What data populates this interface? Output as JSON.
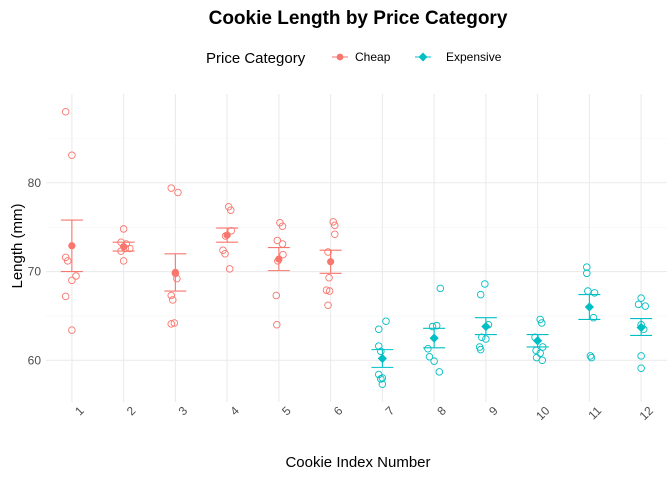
{
  "chart_data": {
    "type": "scatter",
    "title": "Cookie Length by Price Category",
    "xlabel": "Cookie Index Number",
    "ylabel": "Length (mm)",
    "ylim": [
      55.3,
      90.0
    ],
    "y_major_ticks": [
      60,
      70,
      80
    ],
    "y_minor_ticks": [
      65,
      75,
      85
    ],
    "x_tick_labels": [
      "1",
      "2",
      "3",
      "4",
      "5",
      "6",
      "7",
      "8",
      "9",
      "10",
      "11",
      "12"
    ],
    "x_tick_rotation_deg": -45,
    "grid": true,
    "legend": {
      "title": "Price Category",
      "position": "top",
      "entries": [
        "Cheap",
        "Expensive"
      ]
    },
    "colors": {
      "Cheap": "#F8766D",
      "Expensive": "#00BFC4"
    },
    "summary": "mean with standard-error bars",
    "groups": [
      {
        "x": 1,
        "category": "Cheap",
        "mean": 72.9,
        "se_low": 70.0,
        "se_high": 75.8,
        "points": [
          [
            -0.12,
            88.0
          ],
          [
            0.0,
            83.1
          ],
          [
            -0.12,
            71.6
          ],
          [
            -0.08,
            71.2
          ],
          [
            0.0,
            69.0
          ],
          [
            0.08,
            69.5
          ],
          [
            -0.12,
            67.2
          ],
          [
            0.0,
            63.4
          ]
        ]
      },
      {
        "x": 2,
        "category": "Cheap",
        "mean": 72.8,
        "se_low": 72.3,
        "se_high": 73.3,
        "points": [
          [
            0.0,
            74.8
          ],
          [
            -0.05,
            73.3
          ],
          [
            0.05,
            73.1
          ],
          [
            0.12,
            72.6
          ],
          [
            -0.05,
            72.3
          ],
          [
            0.03,
            72.6
          ],
          [
            0.0,
            71.2
          ]
        ]
      },
      {
        "x": 3,
        "category": "Cheap",
        "mean": 69.9,
        "se_low": 67.8,
        "se_high": 72.0,
        "points": [
          [
            -0.08,
            79.4
          ],
          [
            0.05,
            78.9
          ],
          [
            0.0,
            69.8
          ],
          [
            0.03,
            69.2
          ],
          [
            -0.08,
            67.3
          ],
          [
            -0.05,
            66.8
          ],
          [
            -0.08,
            64.1
          ],
          [
            -0.02,
            64.2
          ]
        ]
      },
      {
        "x": 4,
        "category": "Cheap",
        "mean": 74.1,
        "se_low": 73.3,
        "se_high": 74.9,
        "points": [
          [
            0.03,
            77.3
          ],
          [
            0.07,
            76.9
          ],
          [
            0.08,
            74.6
          ],
          [
            -0.03,
            74.0
          ],
          [
            -0.08,
            72.4
          ],
          [
            -0.04,
            72.0
          ],
          [
            0.05,
            70.3
          ]
        ]
      },
      {
        "x": 5,
        "category": "Cheap",
        "mean": 71.4,
        "se_low": 70.1,
        "se_high": 72.7,
        "points": [
          [
            0.02,
            75.5
          ],
          [
            0.07,
            75.1
          ],
          [
            -0.03,
            73.5
          ],
          [
            0.07,
            73.1
          ],
          [
            0.08,
            71.9
          ],
          [
            -0.02,
            71.2
          ],
          [
            -0.05,
            67.3
          ],
          [
            -0.04,
            64.0
          ]
        ]
      },
      {
        "x": 6,
        "category": "Cheap",
        "mean": 71.1,
        "se_low": 69.8,
        "se_high": 72.4,
        "points": [
          [
            0.05,
            75.6
          ],
          [
            0.08,
            75.2
          ],
          [
            0.08,
            74.2
          ],
          [
            -0.05,
            72.2
          ],
          [
            -0.03,
            69.3
          ],
          [
            -0.08,
            67.9
          ],
          [
            -0.02,
            67.8
          ],
          [
            -0.05,
            66.2
          ]
        ]
      },
      {
        "x": 7,
        "category": "Expensive",
        "mean": 60.2,
        "se_low": 59.2,
        "se_high": 61.2,
        "points": [
          [
            0.07,
            64.4
          ],
          [
            -0.07,
            63.5
          ],
          [
            -0.07,
            61.6
          ],
          [
            -0.03,
            61.0
          ],
          [
            -0.07,
            58.4
          ],
          [
            0.0,
            58.0
          ],
          [
            -0.03,
            57.9
          ],
          [
            0.0,
            57.3
          ]
        ]
      },
      {
        "x": 8,
        "category": "Expensive",
        "mean": 62.5,
        "se_low": 61.4,
        "se_high": 63.6,
        "points": [
          [
            0.12,
            68.1
          ],
          [
            -0.03,
            63.8
          ],
          [
            0.05,
            63.9
          ],
          [
            -0.12,
            61.3
          ],
          [
            -0.09,
            60.4
          ],
          [
            0.0,
            59.9
          ],
          [
            0.1,
            58.7
          ]
        ]
      },
      {
        "x": 9,
        "category": "Expensive",
        "mean": 63.8,
        "se_low": 62.9,
        "se_high": 64.8,
        "points": [
          [
            -0.02,
            68.6
          ],
          [
            -0.1,
            67.4
          ],
          [
            0.05,
            64.0
          ],
          [
            -0.08,
            62.6
          ],
          [
            0.0,
            62.4
          ],
          [
            -0.12,
            61.5
          ],
          [
            -0.1,
            61.2
          ]
        ]
      },
      {
        "x": 10,
        "category": "Expensive",
        "mean": 62.2,
        "se_low": 61.5,
        "se_high": 62.9,
        "points": [
          [
            0.05,
            64.6
          ],
          [
            0.08,
            64.2
          ],
          [
            -0.05,
            62.6
          ],
          [
            -0.03,
            61.1
          ],
          [
            0.1,
            61.5
          ],
          [
            0.05,
            60.8
          ],
          [
            -0.02,
            60.3
          ],
          [
            0.09,
            60.0
          ]
        ]
      },
      {
        "x": 11,
        "category": "Expensive",
        "mean": 66.0,
        "se_low": 64.6,
        "se_high": 67.4,
        "points": [
          [
            -0.05,
            70.5
          ],
          [
            -0.05,
            69.8
          ],
          [
            -0.03,
            67.8
          ],
          [
            0.1,
            67.6
          ],
          [
            0.08,
            64.8
          ],
          [
            0.02,
            60.5
          ],
          [
            0.04,
            60.3
          ]
        ]
      },
      {
        "x": 12,
        "category": "Expensive",
        "mean": 63.7,
        "se_low": 62.8,
        "se_high": 64.7,
        "points": [
          [
            0.0,
            67.0
          ],
          [
            -0.05,
            66.3
          ],
          [
            0.08,
            66.1
          ],
          [
            0.0,
            64.0
          ],
          [
            0.05,
            63.5
          ],
          [
            0.0,
            60.5
          ],
          [
            0.0,
            59.1
          ]
        ]
      }
    ]
  }
}
